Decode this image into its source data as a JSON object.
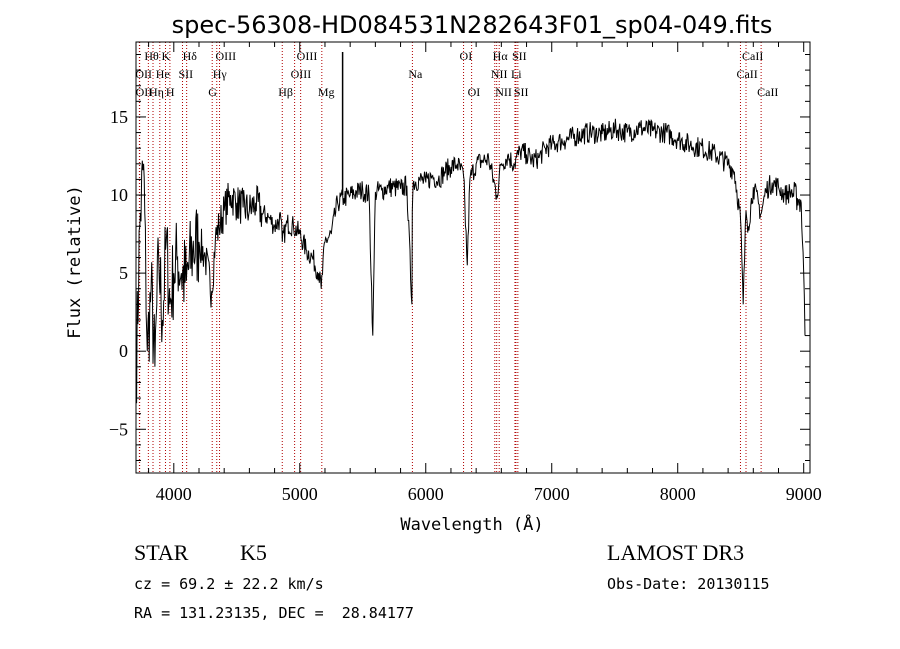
{
  "chart_data": {
    "type": "line",
    "title": "spec-56308-HD084531N282643F01_sp04-049.fits",
    "xlabel": "Wavelength (Å)",
    "ylabel": "Flux (relative)",
    "xlim": [
      3700,
      9050
    ],
    "ylim": [
      -7.8,
      19.8
    ],
    "xticks": [
      4000,
      5000,
      6000,
      7000,
      8000,
      9000
    ],
    "yticks": [
      -5,
      0,
      5,
      10,
      15
    ],
    "grid": false,
    "series": [
      {
        "name": "flux",
        "x": [
          3700,
          3730,
          3760,
          3790,
          3820,
          3850,
          3880,
          3910,
          3940,
          3970,
          4000,
          4030,
          4060,
          4100,
          4150,
          4200,
          4250,
          4300,
          4330,
          4360,
          4400,
          4450,
          4500,
          4550,
          4600,
          4650,
          4700,
          4750,
          4800,
          4850,
          4861,
          4900,
          4950,
          5000,
          5050,
          5100,
          5150,
          5170,
          5200,
          5250,
          5300,
          5350,
          5400,
          5450,
          5500,
          5550,
          5580,
          5600,
          5650,
          5700,
          5750,
          5800,
          5850,
          5890,
          5893,
          5900,
          5950,
          6000,
          6050,
          6100,
          6150,
          6200,
          6250,
          6300,
          6330,
          6350,
          6400,
          6450,
          6500,
          6563,
          6600,
          6650,
          6700,
          6750,
          6800,
          6850,
          6900,
          6950,
          7000,
          7050,
          7100,
          7200,
          7300,
          7400,
          7500,
          7600,
          7700,
          7800,
          7900,
          8000,
          8100,
          8200,
          8300,
          8400,
          8450,
          8498,
          8520,
          8542,
          8560,
          8600,
          8662,
          8700,
          8750,
          8800,
          8850,
          8900,
          8950,
          8980,
          9000,
          9010
        ],
        "values": [
          -2.0,
          8.0,
          12.0,
          0.0,
          4.0,
          -1.0,
          6.0,
          2.0,
          7.0,
          3.0,
          5.0,
          6.0,
          5.0,
          4.5,
          6.5,
          7.0,
          6.0,
          3.8,
          7.2,
          8.0,
          9.0,
          10.0,
          9.5,
          9.2,
          9.0,
          9.5,
          8.8,
          8.6,
          8.0,
          8.5,
          7.0,
          8.2,
          8.0,
          7.5,
          6.5,
          6.0,
          5.0,
          4.0,
          7.0,
          7.5,
          9.5,
          9.8,
          10.0,
          10.2,
          10.3,
          10.0,
          1.0,
          10.2,
          10.3,
          10.5,
          10.5,
          10.4,
          10.6,
          3.0,
          9.0,
          10.8,
          11.0,
          10.8,
          11.2,
          11.0,
          11.5,
          11.8,
          12.0,
          11.2,
          5.5,
          11.0,
          12.0,
          12.2,
          12.3,
          10.0,
          12.0,
          12.5,
          12.0,
          12.8,
          12.6,
          12.2,
          12.4,
          13.0,
          13.2,
          13.4,
          13.5,
          13.8,
          14.0,
          13.9,
          14.2,
          14.0,
          14.3,
          14.1,
          14.0,
          13.6,
          13.2,
          13.0,
          12.6,
          12.0,
          11.5,
          8.5,
          3.0,
          9.0,
          8.0,
          10.5,
          8.8,
          10.3,
          10.8,
          10.5,
          10.0,
          10.2,
          9.8,
          9.5,
          5.0,
          1.0
        ]
      }
    ],
    "lines": [
      {
        "label": "Hθ",
        "x": 3798,
        "row": 0
      },
      {
        "label": "OII",
        "x": 3727,
        "row": 1
      },
      {
        "label": "OII",
        "x": 3729,
        "row": 2
      },
      {
        "label": "K",
        "x": 3934,
        "row": 0
      },
      {
        "label": "He",
        "x": 3889,
        "row": 1
      },
      {
        "label": "Hη",
        "x": 3835,
        "row": 2
      },
      {
        "label": "Hδ",
        "x": 4102,
        "row": 0
      },
      {
        "label": "SII",
        "x": 4069,
        "row": 1
      },
      {
        "label": "H",
        "x": 3969,
        "row": 2
      },
      {
        "label": "OIII",
        "x": 4363,
        "row": 0
      },
      {
        "label": "Hγ",
        "x": 4341,
        "row": 1
      },
      {
        "label": "G",
        "x": 4305,
        "row": 2
      },
      {
        "label": "Hβ",
        "x": 4861,
        "row": 2
      },
      {
        "label": "OIII",
        "x": 5007,
        "row": 0
      },
      {
        "label": "OIII",
        "x": 4959,
        "row": 1
      },
      {
        "label": "Mg",
        "x": 5175,
        "row": 2
      },
      {
        "label": "Na",
        "x": 5894,
        "row": 1
      },
      {
        "label": "OI",
        "x": 6300,
        "row": 0
      },
      {
        "label": "OI",
        "x": 6364,
        "row": 2
      },
      {
        "label": "Hα",
        "x": 6563,
        "row": 0
      },
      {
        "label": "SII",
        "x": 6716,
        "row": 0
      },
      {
        "label": "NII",
        "x": 6548,
        "row": 1
      },
      {
        "label": "Li",
        "x": 6708,
        "row": 1
      },
      {
        "label": "NII",
        "x": 6583,
        "row": 2
      },
      {
        "label": "SII",
        "x": 6731,
        "row": 2
      },
      {
        "label": "CaII",
        "x": 8542,
        "row": 0
      },
      {
        "label": "CaII",
        "x": 8498,
        "row": 1
      },
      {
        "label": "CaII",
        "x": 8662,
        "row": 2
      }
    ],
    "colors": {
      "axis": "#000000",
      "line": "#000000",
      "marker": "#b00000"
    }
  },
  "info": {
    "object_class": "STAR",
    "subclass": "K5",
    "survey": "LAMOST DR3",
    "cz": "cz = 69.2 ± 22.2 km/s",
    "obs_date": "Obs-Date: 20130115",
    "coords": "RA = 131.23135, DEC =  28.84177"
  }
}
